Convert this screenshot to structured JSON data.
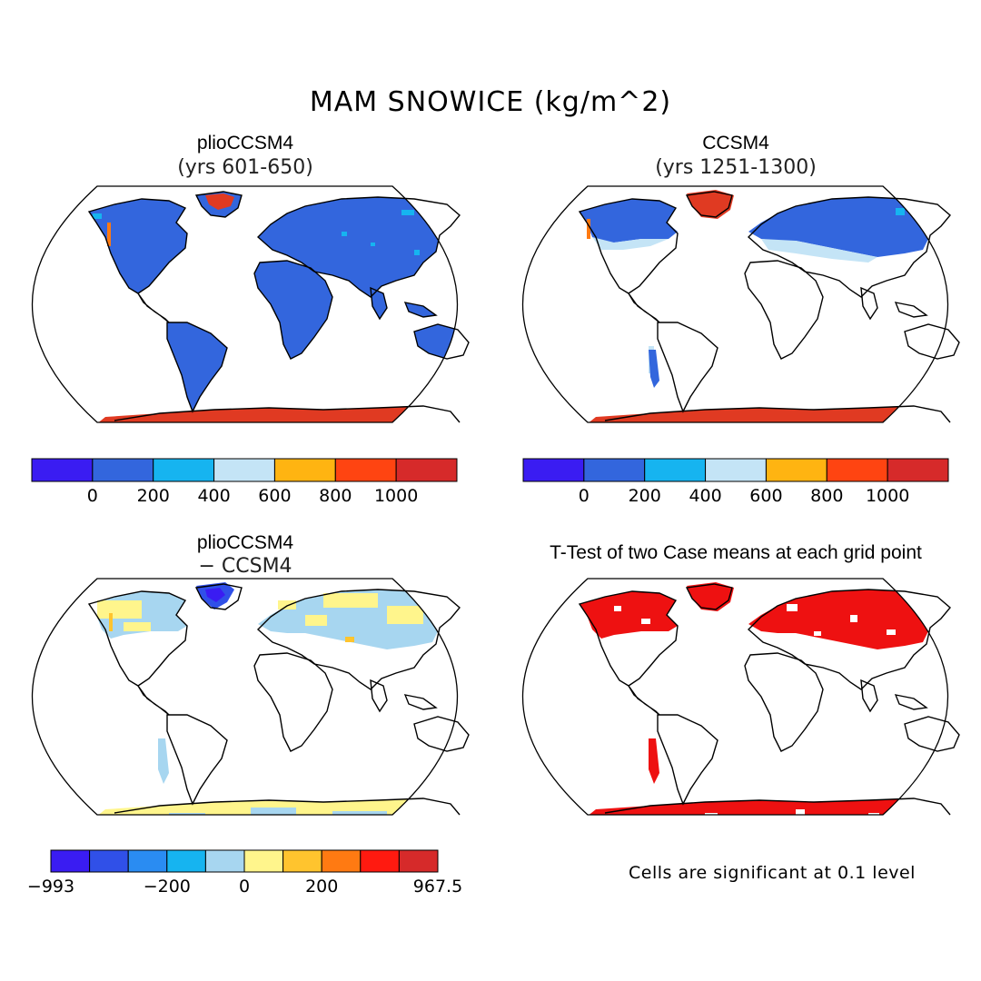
{
  "title": "MAM SNOWICE (kg/m^2)",
  "panels": [
    {
      "title": "plioCCSM4",
      "subtitle": "(yrs 601-650)"
    },
    {
      "title": "CCSM4",
      "subtitle": "(yrs 1251-1300)"
    },
    {
      "title": "plioCCSM4",
      "subtitle": "− CCSM4"
    },
    {
      "title": "T-Test of two Case means at each grid point",
      "subtitle": ""
    }
  ],
  "colorbars": {
    "absolute": {
      "colors": [
        "#3a1cf2",
        "#3366dd",
        "#16b4f0",
        "#c4e4f6",
        "#ffb411",
        "#ff4411",
        "#d62a2a"
      ],
      "labels": [
        "0",
        "200",
        "400",
        "600",
        "800",
        "1000"
      ]
    },
    "difference": {
      "colors": [
        "#3a1cf2",
        "#3050e8",
        "#2a8cf2",
        "#16b4f0",
        "#a7d6f0",
        "#fff58c",
        "#ffc42e",
        "#ff7a12",
        "#ff1a10",
        "#d62a2a"
      ],
      "labels": [
        "−993",
        "−200",
        "0",
        "200",
        "967.5"
      ]
    }
  },
  "ttest_note": "Cells are significant at 0.1 level",
  "legend_colors": {
    "land_snow": "#3366dd",
    "ice": "#e03a22",
    "significant": "#ee1111",
    "coast": "#000000"
  }
}
